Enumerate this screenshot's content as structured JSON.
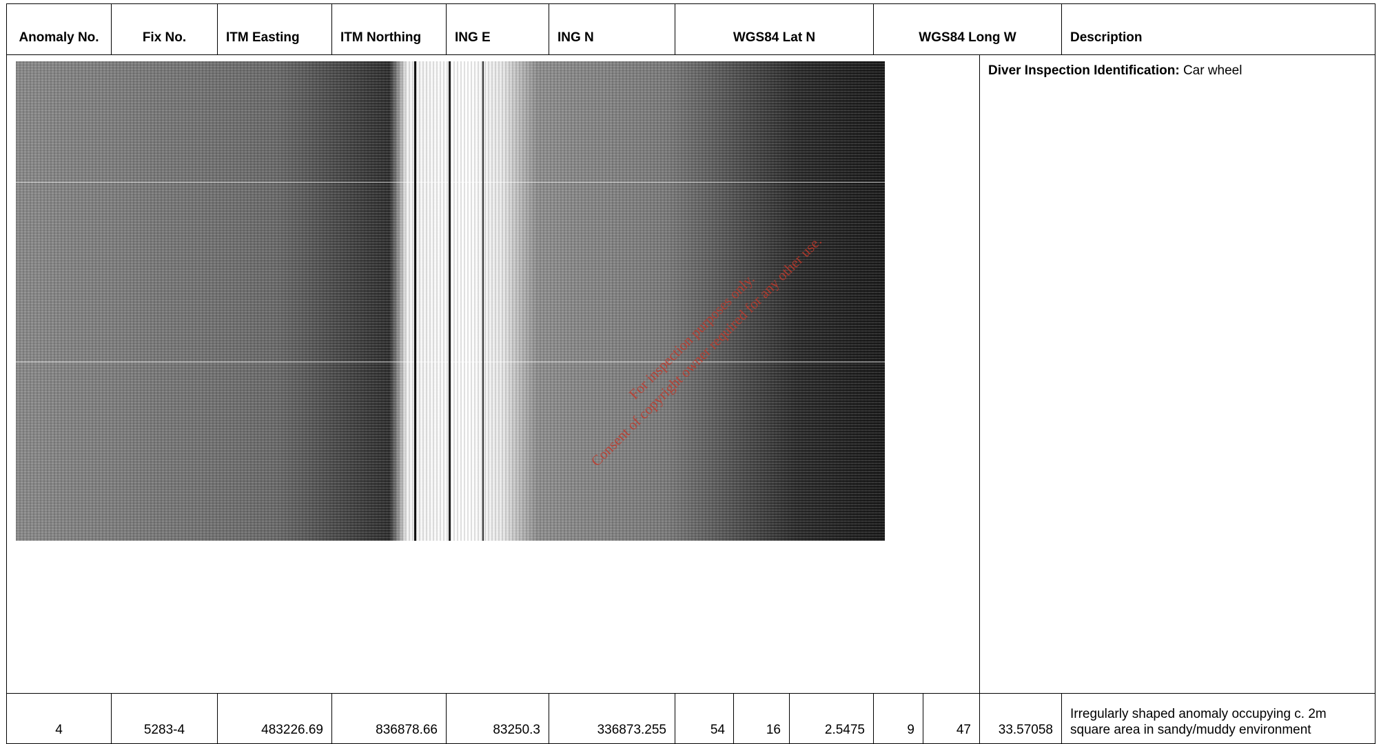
{
  "table": {
    "header": [
      "Anomaly No.",
      "Fix No.",
      "ITM Easting",
      "ITM Northing",
      "ING E",
      "ING N",
      "WGS84 Lat N",
      "WGS84 Long W",
      "Description"
    ],
    "image_row": {
      "description_label": "Diver Inspection Identification:",
      "description_value": "Car wheel",
      "watermark": [
        "For inspection purposes only.",
        "Consent of copyright owner required for any other use."
      ]
    },
    "rows": [
      [
        "4",
        "5283-4",
        "483226.69",
        "836878.66",
        "83250.3",
        "336873.255",
        "54",
        "16",
        "2.5475",
        "9",
        "47",
        "33.57058",
        "Irregularly shaped anomaly occupying c. 2m square area in sandy/muddy environment"
      ]
    ]
  }
}
